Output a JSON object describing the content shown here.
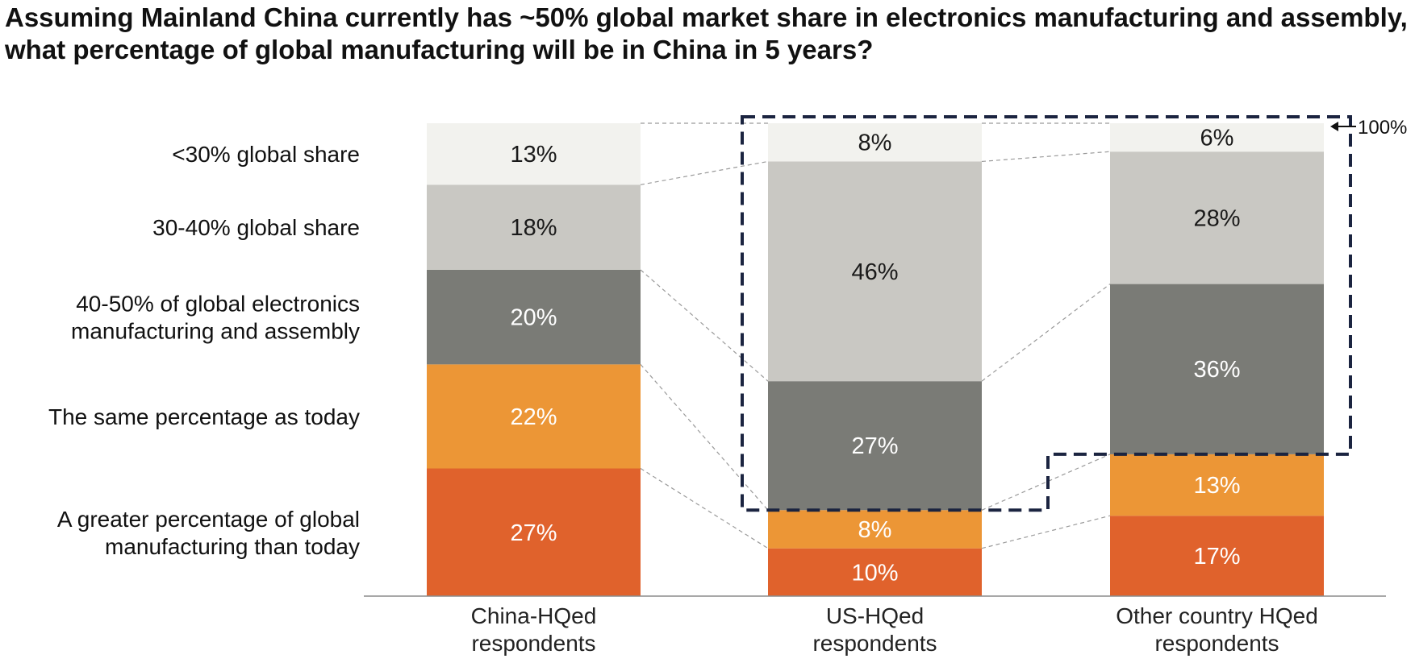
{
  "chart_data": {
    "type": "bar",
    "stacked": true,
    "title": "Assuming Mainland China currently has ~50% global market share in electronics manufacturing and assembly, what percentage of global manufacturing will be in China in 5 years?",
    "categories": [
      [
        "China-HQed",
        "respondents"
      ],
      [
        "US-HQed",
        "respondents"
      ],
      [
        "Other country HQed",
        "respondents"
      ]
    ],
    "series": [
      {
        "name": [
          "A greater percentage of global",
          "manufacturing than today"
        ],
        "values": [
          27,
          10,
          17
        ],
        "color": "#e0622c",
        "label_color": "#ffffff"
      },
      {
        "name": [
          "The same percentage as today"
        ],
        "values": [
          22,
          8,
          13
        ],
        "color": "#ec9636",
        "label_color": "#ffffff"
      },
      {
        "name": [
          "40-50% of global electronics",
          "manufacturing and assembly"
        ],
        "values": [
          20,
          27,
          36
        ],
        "color": "#7a7b76",
        "label_color": "#ffffff"
      },
      {
        "name": [
          "30-40% global share"
        ],
        "values": [
          18,
          46,
          28
        ],
        "color": "#c9c8c3",
        "label_color": "#1a1a1a"
      },
      {
        "name": [
          "<30% global share"
        ],
        "values": [
          13,
          8,
          6
        ],
        "color": "#f2f2ee",
        "label_color": "#1a1a1a"
      }
    ],
    "value_suffix": "%",
    "ylim": [
      0,
      100
    ],
    "grid": false,
    "legend": "left",
    "annotation": "100%",
    "highlight": "dashed outline around the 40-50% and below-50% share segments of US-HQed and Other country HQed respondents"
  }
}
